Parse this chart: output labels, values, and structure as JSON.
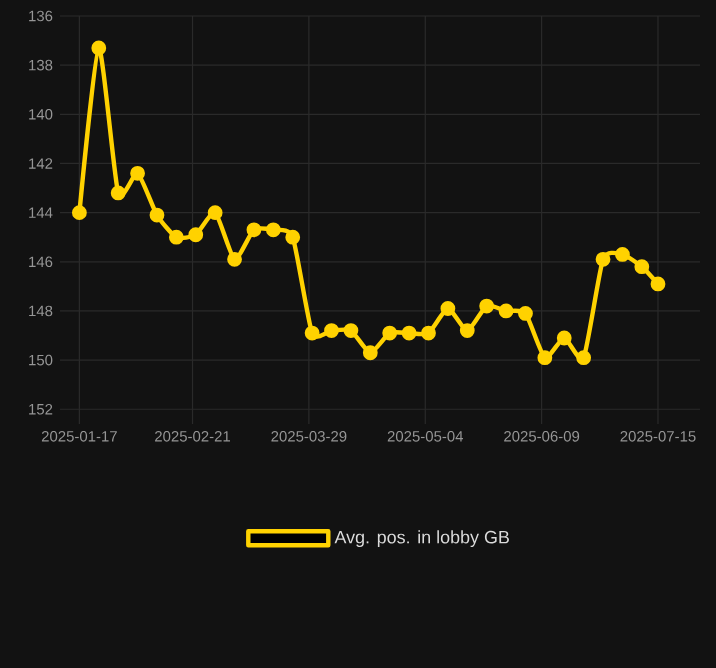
{
  "chart_data": {
    "type": "line",
    "x": [
      "2025-01-17",
      "2025-01-23",
      "2025-01-29",
      "2025-02-04",
      "2025-02-10",
      "2025-02-16",
      "2025-02-22",
      "2025-02-28",
      "2025-03-06",
      "2025-03-12",
      "2025-03-18",
      "2025-03-24",
      "2025-03-30",
      "2025-04-05",
      "2025-04-11",
      "2025-04-17",
      "2025-04-23",
      "2025-04-29",
      "2025-05-05",
      "2025-05-11",
      "2025-05-17",
      "2025-05-23",
      "2025-05-29",
      "2025-06-04",
      "2025-06-10",
      "2025-06-16",
      "2025-06-22",
      "2025-06-28",
      "2025-07-04",
      "2025-07-10",
      "2025-07-15"
    ],
    "series": [
      {
        "name": "Avg. pos. in lobby GB",
        "color": "#ffd200",
        "values": [
          144.0,
          137.3,
          143.2,
          142.4,
          144.1,
          145.0,
          144.9,
          144.0,
          145.9,
          144.7,
          144.7,
          145.0,
          148.9,
          148.8,
          148.8,
          149.7,
          148.9,
          148.9,
          148.9,
          147.9,
          148.8,
          147.8,
          148.0,
          148.1,
          149.9,
          149.1,
          149.9,
          145.9,
          145.7,
          146.2,
          146.9
        ]
      }
    ],
    "xlim": [
      "2025-01-11",
      "2025-07-28"
    ],
    "xticks": [
      "2025-01-17",
      "2025-02-21",
      "2025-03-29",
      "2025-05-04",
      "2025-06-09",
      "2025-07-15"
    ],
    "ylim": [
      152.6,
      136
    ],
    "yticks": [
      136,
      138,
      140,
      142,
      144,
      146,
      148,
      150,
      152
    ],
    "grid": true,
    "legend": "bottom",
    "marker": "circle",
    "line_style": "solid"
  }
}
